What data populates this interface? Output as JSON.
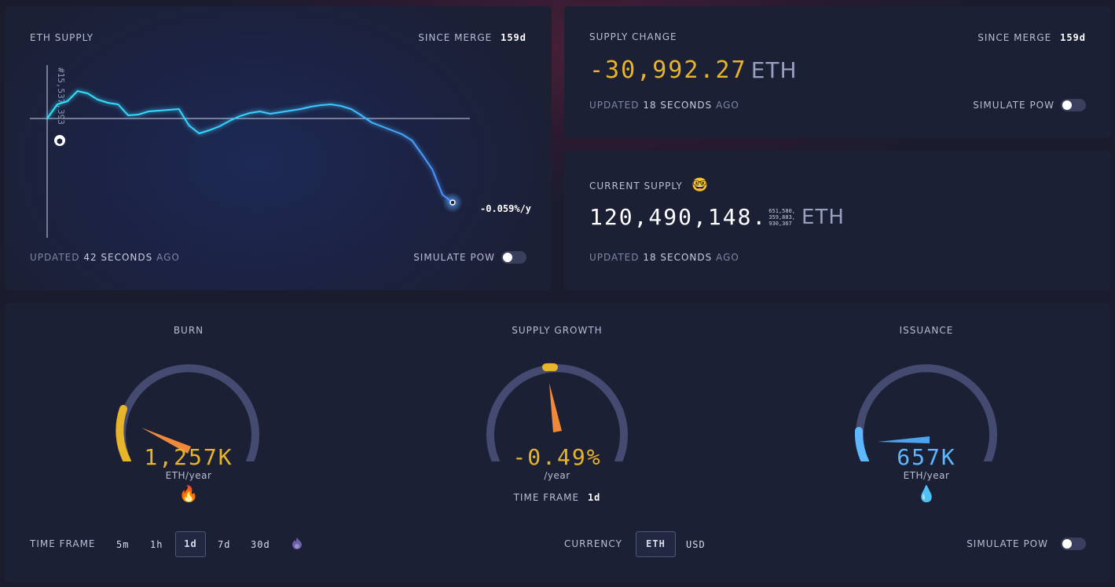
{
  "eth_supply": {
    "title": "ETH SUPPLY",
    "since_merge_label": "SINCE MERGE",
    "since_merge_value": "159d",
    "block_label": "#15,537,393",
    "end_label": "-0.059%/y",
    "updated_prefix": "UPDATED",
    "updated_value": "42 SECONDS",
    "updated_suffix": "AGO",
    "simulate_label": "SIMULATE PoW",
    "chart_data": {
      "type": "line",
      "title": "ETH SUPPLY",
      "xlabel": "",
      "ylabel": "",
      "series": [
        {
          "values": [
            0,
            18,
            22,
            35,
            32,
            24,
            20,
            18,
            4,
            5,
            9,
            10,
            11,
            12,
            -9,
            -19,
            -15,
            -10,
            -3,
            3,
            7,
            9,
            6,
            8,
            10,
            12,
            15,
            17,
            18,
            16,
            12,
            4,
            -5,
            -10,
            -15,
            -20,
            -28,
            -46,
            -65,
            -97,
            -107
          ]
        }
      ],
      "annotation": "-0.059%/y",
      "grid": false
    }
  },
  "supply_change": {
    "title": "SUPPLY CHANGE",
    "since_merge_label": "SINCE MERGE",
    "since_merge_value": "159d",
    "value": "-30,992.27",
    "unit": "ETH",
    "updated_prefix": "UPDATED",
    "updated_value": "18 SECONDS",
    "updated_suffix": "AGO",
    "simulate_label": "SIMULATE PoW"
  },
  "current_supply": {
    "title": "CURRENT SUPPLY",
    "emoji": "🤓",
    "value_main": "120,490,148.",
    "decimals_line1": "651,580,",
    "decimals_line2": "359,883,",
    "decimals_line3": "930,367",
    "unit": "ETH",
    "updated_prefix": "UPDATED",
    "updated_value": "18 SECONDS",
    "updated_suffix": "AGO"
  },
  "gauges": {
    "burn": {
      "title": "BURN",
      "value": "1,257K",
      "unit": "ETH/year",
      "emoji": "🔥",
      "level": 0.18,
      "color": "#e8b42a"
    },
    "supply_growth": {
      "title": "SUPPLY GROWTH",
      "value": "-0.49%",
      "unit": "/year",
      "timeframe_label": "TIME FRAME",
      "timeframe_value": "1d",
      "level": 0.49,
      "color": "#e8b42a"
    },
    "issuance": {
      "title": "ISSUANCE",
      "value": "657K",
      "unit": "ETH/year",
      "emoji": "💧",
      "level": 0.1,
      "color": "#5db8ff"
    }
  },
  "footer": {
    "timeframe_label": "TIME FRAME",
    "timeframes": [
      "5m",
      "1h",
      "1d",
      "7d",
      "30d"
    ],
    "active_timeframe": "1d",
    "flame_icon": "flame-icon",
    "currency_label": "CURRENCY",
    "currency_options": [
      "ETH",
      "USD"
    ],
    "active_currency": "ETH",
    "simulate_label": "SIMULATE PoW"
  },
  "colors": {
    "accent_gold": "#e8b42a",
    "accent_blue": "#5db8ff",
    "line_cyan": "#3fe0ff",
    "card_bg": "#1c2035"
  }
}
